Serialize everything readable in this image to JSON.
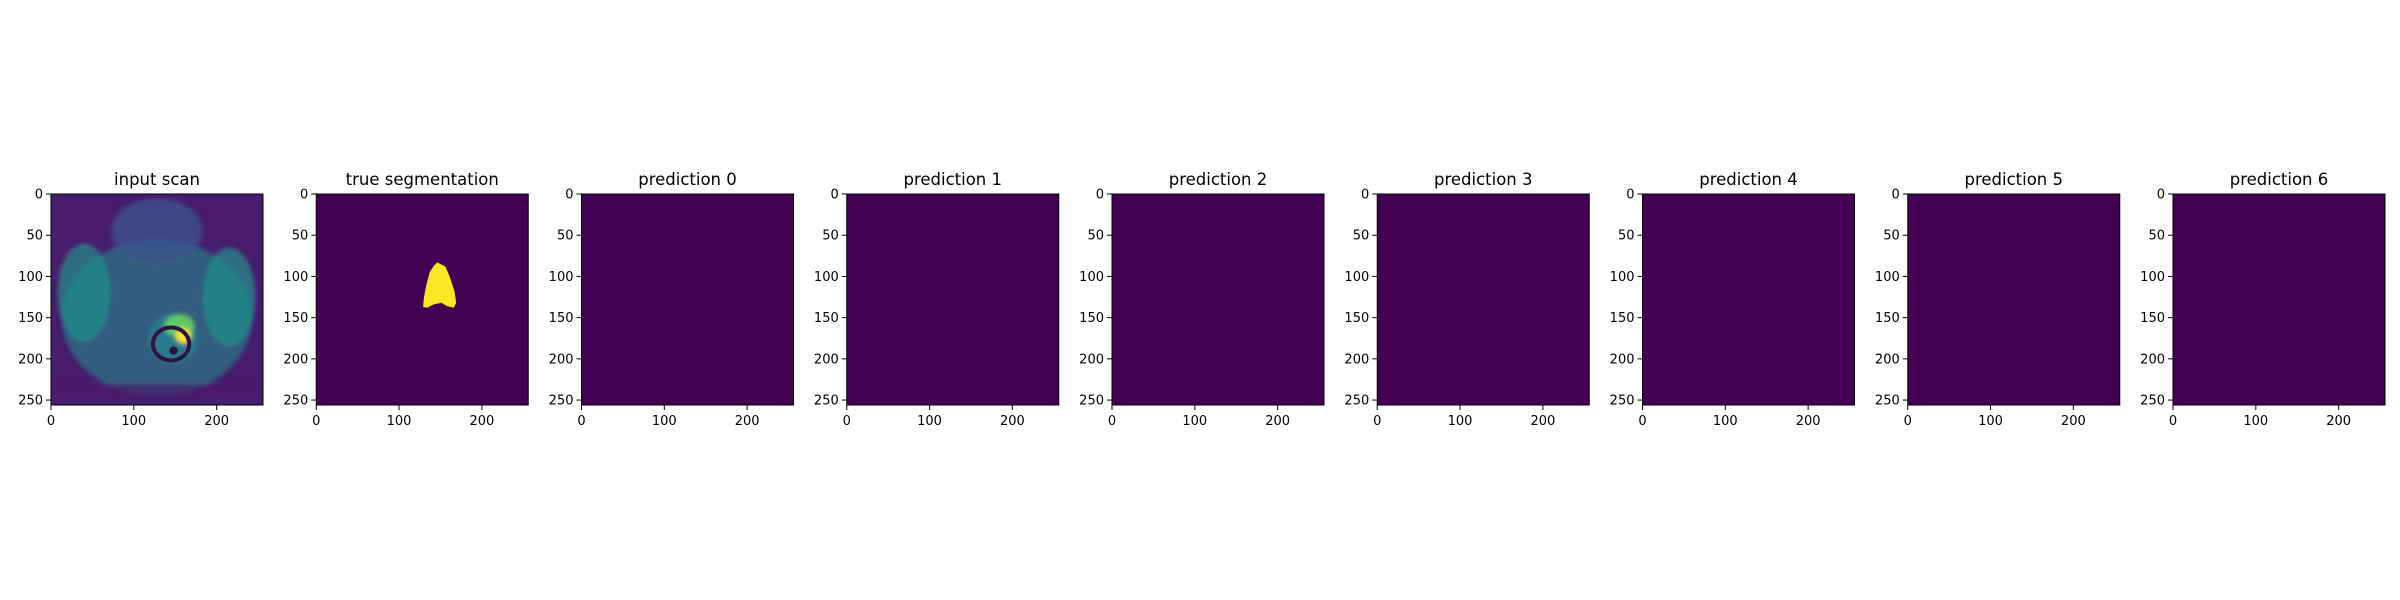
{
  "chart_data": [
    {
      "type": "heatmap",
      "title": "input scan",
      "content": "mri",
      "xlim": [
        0,
        256
      ],
      "ylim": [
        256,
        0
      ],
      "xticks": [
        0,
        100,
        200
      ],
      "yticks": [
        0,
        50,
        100,
        150,
        200,
        250
      ],
      "colormap": "viridis"
    },
    {
      "type": "heatmap",
      "title": "true segmentation",
      "content": "mask",
      "mask_polygon": [
        [
          146,
          83
        ],
        [
          156,
          88
        ],
        [
          161,
          100
        ],
        [
          167,
          118
        ],
        [
          169,
          132
        ],
        [
          166,
          138
        ],
        [
          158,
          136
        ],
        [
          151,
          132
        ],
        [
          142,
          134
        ],
        [
          134,
          138
        ],
        [
          129,
          137
        ],
        [
          130,
          126
        ],
        [
          133,
          110
        ],
        [
          137,
          95
        ],
        [
          142,
          87
        ]
      ],
      "xlim": [
        0,
        256
      ],
      "ylim": [
        256,
        0
      ],
      "xticks": [
        0,
        100,
        200
      ],
      "yticks": [
        0,
        50,
        100,
        150,
        200,
        250
      ],
      "colormap": "viridis"
    },
    {
      "type": "heatmap",
      "title": "prediction 0",
      "content": "empty",
      "xlim": [
        0,
        256
      ],
      "ylim": [
        256,
        0
      ],
      "xticks": [
        0,
        100,
        200
      ],
      "yticks": [
        0,
        50,
        100,
        150,
        200,
        250
      ],
      "colormap": "viridis"
    },
    {
      "type": "heatmap",
      "title": "prediction 1",
      "content": "empty",
      "xlim": [
        0,
        256
      ],
      "ylim": [
        256,
        0
      ],
      "xticks": [
        0,
        100,
        200
      ],
      "yticks": [
        0,
        50,
        100,
        150,
        200,
        250
      ],
      "colormap": "viridis"
    },
    {
      "type": "heatmap",
      "title": "prediction 2",
      "content": "empty",
      "xlim": [
        0,
        256
      ],
      "ylim": [
        256,
        0
      ],
      "xticks": [
        0,
        100,
        200
      ],
      "yticks": [
        0,
        50,
        100,
        150,
        200,
        250
      ],
      "colormap": "viridis"
    },
    {
      "type": "heatmap",
      "title": "prediction 3",
      "content": "empty",
      "xlim": [
        0,
        256
      ],
      "ylim": [
        256,
        0
      ],
      "xticks": [
        0,
        100,
        200
      ],
      "yticks": [
        0,
        50,
        100,
        150,
        200,
        250
      ],
      "colormap": "viridis"
    },
    {
      "type": "heatmap",
      "title": "prediction 4",
      "content": "empty",
      "xlim": [
        0,
        256
      ],
      "ylim": [
        256,
        0
      ],
      "xticks": [
        0,
        100,
        200
      ],
      "yticks": [
        0,
        50,
        100,
        150,
        200,
        250
      ],
      "colormap": "viridis"
    },
    {
      "type": "heatmap",
      "title": "prediction 5",
      "content": "empty",
      "xlim": [
        0,
        256
      ],
      "ylim": [
        256,
        0
      ],
      "xticks": [
        0,
        100,
        200
      ],
      "yticks": [
        0,
        50,
        100,
        150,
        200,
        250
      ],
      "colormap": "viridis"
    },
    {
      "type": "heatmap",
      "title": "prediction 6",
      "content": "empty",
      "xlim": [
        0,
        256
      ],
      "ylim": [
        256,
        0
      ],
      "xticks": [
        0,
        100,
        200
      ],
      "yticks": [
        0,
        50,
        100,
        150,
        200,
        250
      ],
      "colormap": "viridis"
    }
  ],
  "colors": {
    "background": "#440154",
    "foreground": "#fde725",
    "axis": "#000000",
    "scan_dark": "#481c6e",
    "scan_mid": "#21918c",
    "scan_light": "#5ec962"
  }
}
